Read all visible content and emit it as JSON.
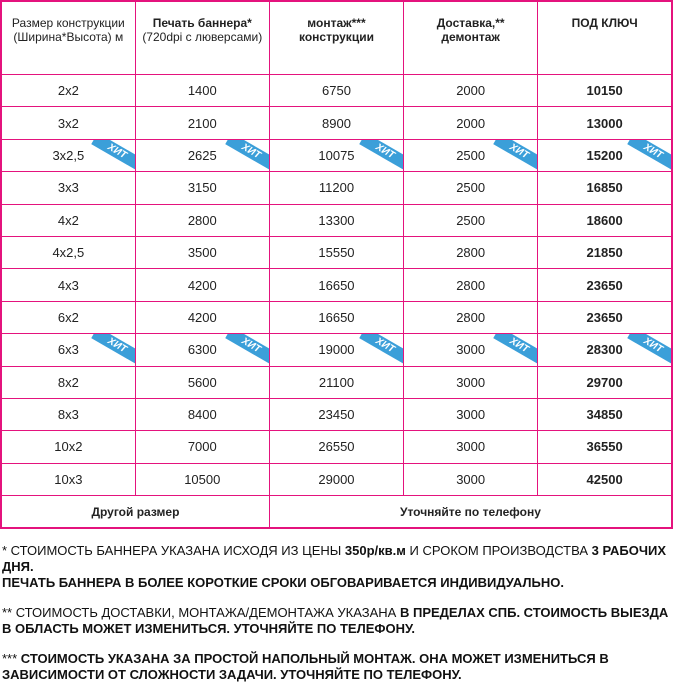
{
  "table": {
    "header": [
      [
        {
          "text": "Размер конструкции",
          "bold": false
        },
        {
          "text": "(Ширина*Высота) м",
          "bold": false
        }
      ],
      [
        {
          "text": "Печать баннера*",
          "bold": true
        },
        {
          "text": "(720dpi с люверсами)",
          "bold": false
        }
      ],
      [
        {
          "text": "монтаж***",
          "bold": true
        },
        {
          "text": "конструкции",
          "bold": true
        }
      ],
      [
        {
          "text": "Доставка,**",
          "bold": true
        },
        {
          "text": "демонтаж",
          "bold": true
        }
      ],
      [
        {
          "text": "ПОД КЛЮЧ",
          "bold": true
        }
      ]
    ],
    "hit_badge": "ХИТ",
    "rows": [
      {
        "cells": [
          "2x2",
          1400,
          6750,
          2000,
          10150
        ]
      },
      {
        "cells": [
          "3x2",
          2100,
          8900,
          2000,
          13000
        ]
      },
      {
        "cells": [
          "3x2,5",
          2625,
          10075,
          2500,
          15200
        ],
        "hit": true
      },
      {
        "cells": [
          "3x3",
          3150,
          11200,
          2500,
          16850
        ]
      },
      {
        "cells": [
          "4x2",
          2800,
          13300,
          2500,
          18600
        ]
      },
      {
        "cells": [
          "4x2,5",
          3500,
          15550,
          2800,
          21850
        ]
      },
      {
        "cells": [
          "4x3",
          4200,
          16650,
          2800,
          23650
        ]
      },
      {
        "cells": [
          "6x2",
          4200,
          16650,
          2800,
          23650
        ]
      },
      {
        "cells": [
          "6x3",
          6300,
          19000,
          3000,
          28300
        ],
        "hit": true
      },
      {
        "cells": [
          "8x2",
          5600,
          21100,
          3000,
          29700
        ]
      },
      {
        "cells": [
          "8x3",
          8400,
          23450,
          3000,
          34850
        ]
      },
      {
        "cells": [
          "10x2",
          7000,
          26550,
          3000,
          36550
        ]
      },
      {
        "cells": [
          "10x3",
          10500,
          29000,
          3000,
          42500
        ]
      }
    ],
    "footer": [
      "Другой размер",
      "Уточняйте по телефону"
    ]
  },
  "notes": [
    [
      {
        "text": "* СТОИМОСТЬ БАННЕРА УКАЗАНА ИСХОДЯ ИЗ ЦЕНЫ ",
        "bold": false
      },
      {
        "text": "350р/кв.м",
        "bold": true
      },
      {
        "text": " И СРОКОМ ПРОИЗВОДСТВА ",
        "bold": false
      },
      {
        "text": "3 РАБОЧИХ ДНЯ.",
        "bold": true
      },
      {
        "text": "ПЕЧАТЬ БАННЕРА В БОЛЕЕ КОРОТКИЕ СРОКИ ОБГОВАРИВАЕТСЯ ИНДИВИДУАЛЬНО.",
        "bold": true,
        "newline": true
      }
    ],
    [
      {
        "text": "** СТОИМОСТЬ ДОСТАВКИ, МОНТАЖА/ДЕМОНТАЖА УКАЗАНА ",
        "bold": false
      },
      {
        "text": "В ПРЕДЕЛАХ СПБ. СТОИМОСТЬ ВЫЕЗДА В ОБЛАСТЬ МОЖЕТ ИЗМЕНИТЬСЯ. УТОЧНЯЙТЕ ПО ТЕЛЕФОНУ.",
        "bold": true
      }
    ],
    [
      {
        "text": "*** ",
        "bold": false
      },
      {
        "text": "СТОИМОСТЬ УКАЗАНА ЗА ПРОСТОЙ НАПОЛЬНЫЙ МОНТАЖ. ОНА МОЖЕТ ИЗМЕНИТЬСЯ В ЗАВИСИМОСТИ ОТ СЛОЖНОСТИ ЗАДАЧИ. УТОЧНЯЙТЕ ПО ТЕЛЕФОНУ.",
        "bold": true
      }
    ]
  ]
}
